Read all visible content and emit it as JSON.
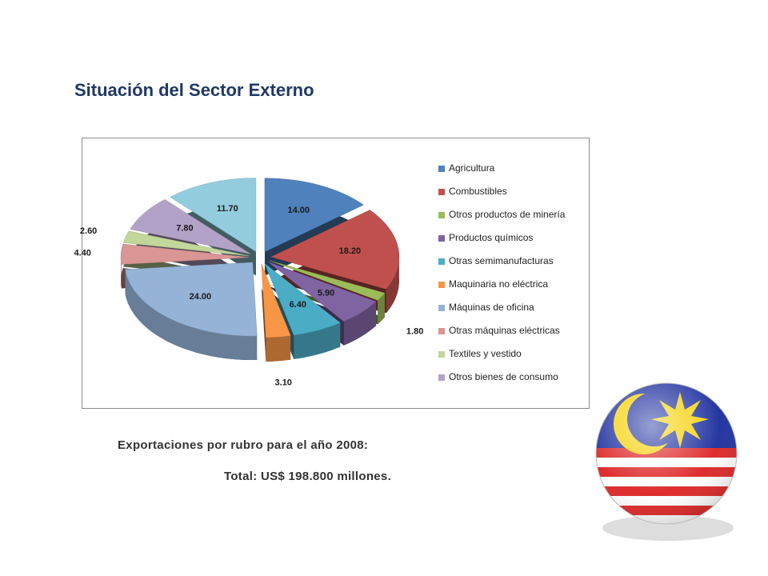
{
  "title": "Situación del Sector Externo",
  "chart_data": {
    "type": "pie",
    "categories": [
      "Agricultura",
      "Combustibles",
      "Otros productos de minería",
      "Productos químicos",
      "Otras semimanufacturas",
      "Maquinaria no eléctrica",
      "Máquinas de oficina",
      "Otras máquinas eléctricas",
      "Textiles y vestido",
      "Otros bienes de consumo",
      null
    ],
    "values": [
      14,
      18.2,
      1.8,
      5.9,
      6.4,
      3.1,
      24,
      4.4,
      2.6,
      7.8,
      11.7
    ],
    "value_labels": [
      "14.00",
      "18.20",
      "1.80",
      "5.90",
      "6.40",
      "3.10",
      "24.00",
      "4.40",
      "2.60",
      "7.80",
      "11.70"
    ],
    "colors": [
      "#4f81bd",
      "#c0504d",
      "#9bbb59",
      "#8064a2",
      "#4bacc6",
      "#f79646",
      "#95b3d7",
      "#d99694",
      "#c3d69b",
      "#b3a2c7",
      "#93cddd"
    ],
    "legend": "right"
  },
  "caption": [
    "Exportaciones por rubro para el año 2008:",
    "Total: US$ 198.800 millones."
  ]
}
